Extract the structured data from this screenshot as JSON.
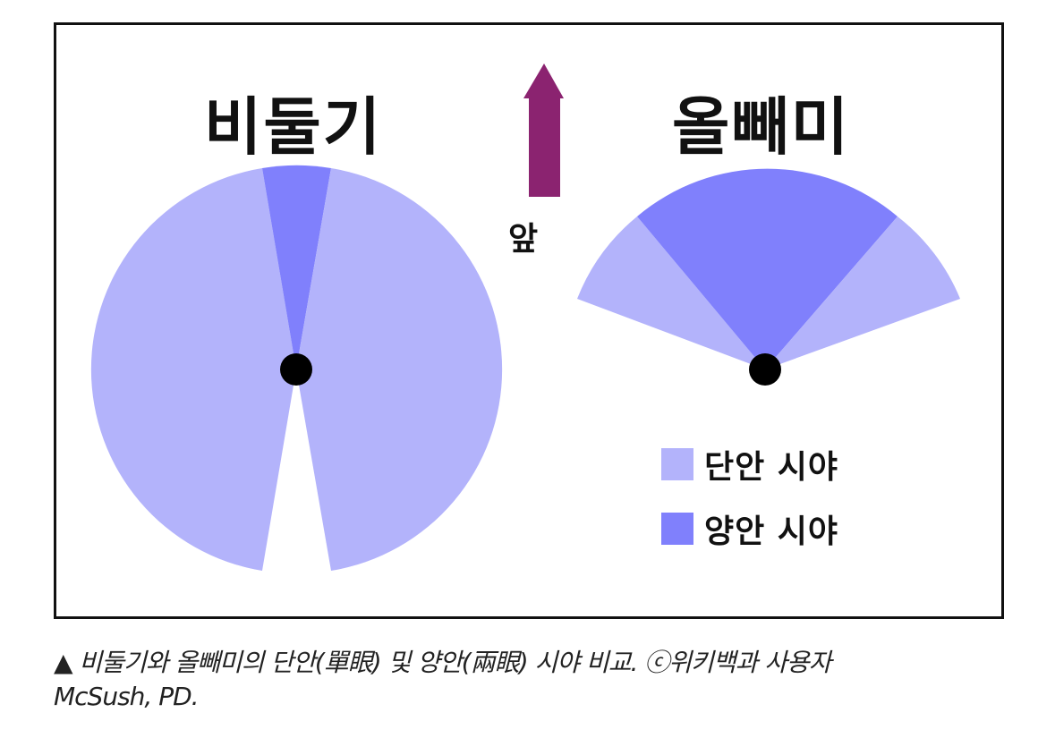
{
  "figure": {
    "title_left": "비둘기",
    "title_right": "올빼미",
    "front_label": "앞",
    "colors": {
      "monocular": "#b3b3fb",
      "binocular": "#8080fc",
      "arrow": "#8b2370",
      "eye": "#000000"
    },
    "legend": [
      {
        "label": "단안 시야",
        "color": "#b3b3fb"
      },
      {
        "label": "양안 시야",
        "color": "#8080fc"
      }
    ]
  },
  "caption": {
    "line1": "▲ 비둘기와 올빼미의 단안(單眼) 및 양안(兩眼) 시야 비교. ⓒ위키백과 사용자",
    "line2": "McSush, PD."
  }
}
